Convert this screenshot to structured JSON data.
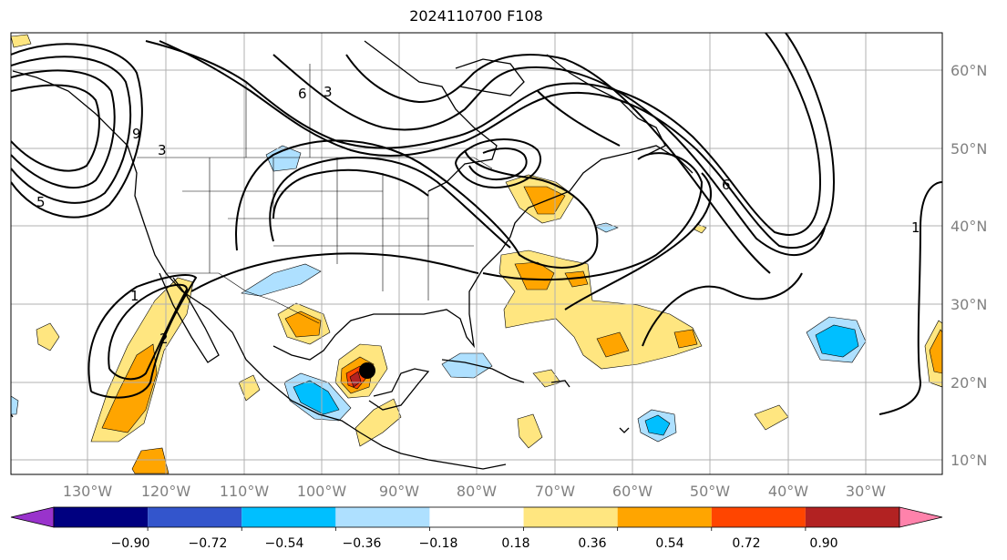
{
  "title": "2024110700 F108",
  "lon_labels": [
    "130°W",
    "120°W",
    "110°W",
    "100°W",
    "90°W",
    "80°W",
    "70°W",
    "60°W",
    "50°W",
    "40°W",
    "30°W"
  ],
  "lat_labels": [
    "10°N",
    "20°N",
    "30°N",
    "40°N",
    "50°N",
    "60°N"
  ],
  "colorbar": {
    "labels": [
      "−0.90",
      "−0.72",
      "−0.54",
      "−0.36",
      "−0.18",
      "0.18",
      "0.36",
      "0.54",
      "0.72",
      "0.90"
    ],
    "colors": [
      "#9933cc",
      "#000080",
      "#3355cc",
      "#00bfff",
      "#aee0ff",
      "#ffffff",
      "#ffe680",
      "#ffa500",
      "#ff4500",
      "#b22222",
      "#ff82ab"
    ]
  },
  "contour_labels": [
    "1",
    "1",
    "2",
    "3",
    "3",
    "5",
    "6",
    "6",
    "9"
  ],
  "marker": "storm-center-dot"
}
